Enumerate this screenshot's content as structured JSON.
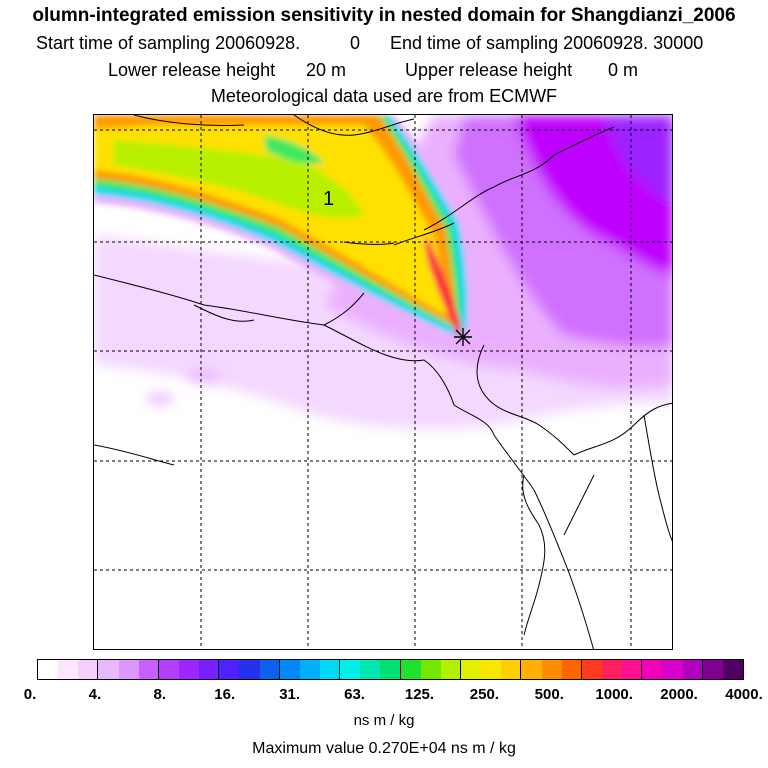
{
  "header": {
    "title": "olumn-integrated emission sensitivity in nested domain for Shangdianzi_2006",
    "start_label": "Start time of sampling 20060928.",
    "start_value": "0",
    "end_label": "End time of sampling 20060928. 30000",
    "lower_label": "Lower release height",
    "lower_value": "20 m",
    "upper_label": "Upper release height",
    "upper_value": "0 m",
    "met": "Meteorological data used are from ECMWF"
  },
  "map": {
    "contour_label": "1",
    "station_marker": "star-marker",
    "colors": {
      "pale": "#f4d8ff",
      "lilac": "#eab0ff",
      "violet": "#d070ff",
      "magenta": "#c000ff",
      "purple": "#9c20ff",
      "orange": "#ff9a00",
      "yellow": "#ffe000",
      "lime": "#b8f000",
      "green": "#40e860",
      "cyan": "#00d8f0",
      "red": "#ff2040"
    }
  },
  "legend": {
    "colors": [
      "#ffffff",
      "#fbe8ff",
      "#f4d0ff",
      "#eab8ff",
      "#dc98ff",
      "#c860ff",
      "#b440ff",
      "#9c28ff",
      "#7820ff",
      "#5020ff",
      "#2830f0",
      "#1060f0",
      "#0088ff",
      "#00b0ff",
      "#00d8f8",
      "#00f0e8",
      "#00e8b0",
      "#00e070",
      "#20e030",
      "#70e800",
      "#b0f000",
      "#e0f000",
      "#f8e800",
      "#ffd000",
      "#ffb000",
      "#ff8c00",
      "#ff6400",
      "#ff3c20",
      "#ff2060",
      "#ff1090",
      "#f000b8",
      "#d800c8",
      "#b000c0",
      "#800090",
      "#500060"
    ],
    "labels": [
      "0.",
      "4.",
      "8.",
      "16.",
      "31.",
      "63.",
      "125.",
      "250.",
      "500.",
      "1000.",
      "2000.",
      "4000."
    ],
    "unit": "ns m / kg"
  },
  "footer": {
    "max_value": "Maximum value  0.270E+04 ns m / kg"
  }
}
